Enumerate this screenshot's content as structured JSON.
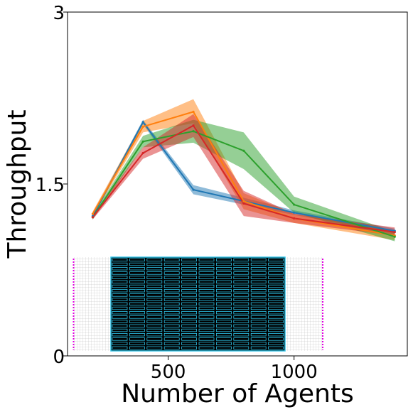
{
  "chart_data": {
    "type": "line",
    "title": "",
    "xlabel": "Number of Agents",
    "ylabel": "Throughput",
    "xlim": [
      100,
      1450
    ],
    "ylim": [
      0,
      3
    ],
    "xticks": [
      500,
      1000
    ],
    "xtick_labels": [
      "500",
      "1000"
    ],
    "yticks": [
      0,
      1.5,
      3
    ],
    "ytick_labels": [
      "0",
      "1.5",
      "3"
    ],
    "grid": false,
    "legend": "none",
    "x": [
      200,
      400,
      600,
      800,
      1000,
      1400
    ],
    "series": [
      {
        "color": "#1f77b4",
        "values": [
          1.22,
          2.04,
          1.45,
          1.35,
          1.25,
          1.09
        ],
        "lower": [
          1.2,
          2.02,
          1.41,
          1.32,
          1.23,
          1.07
        ],
        "upper": [
          1.24,
          2.06,
          1.49,
          1.38,
          1.27,
          1.11
        ]
      },
      {
        "color": "#ff7f0e",
        "values": [
          1.24,
          2.0,
          2.13,
          1.35,
          1.2,
          1.05
        ],
        "lower": [
          1.22,
          1.95,
          2.03,
          1.28,
          1.16,
          1.01
        ],
        "upper": [
          1.26,
          2.05,
          2.24,
          1.42,
          1.24,
          1.09
        ]
      },
      {
        "color": "#2ca02c",
        "values": [
          1.21,
          1.87,
          1.96,
          1.79,
          1.32,
          1.04
        ],
        "lower": [
          1.19,
          1.82,
          1.86,
          1.63,
          1.25,
          1.0
        ],
        "upper": [
          1.23,
          1.92,
          2.06,
          1.95,
          1.39,
          1.08
        ]
      },
      {
        "color": "#d62728",
        "values": [
          1.21,
          1.77,
          2.01,
          1.33,
          1.2,
          1.08
        ],
        "lower": [
          1.19,
          1.72,
          1.91,
          1.22,
          1.16,
          1.05
        ],
        "upper": [
          1.23,
          1.82,
          2.11,
          1.44,
          1.24,
          1.12
        ]
      }
    ]
  },
  "inset_colors": {
    "grid_background": "#ffffff",
    "grid_lines": "#bbbbbb",
    "block_fill": "#000000",
    "block_outline": "#2ec4e8",
    "edge_markers": "#e000e0"
  }
}
